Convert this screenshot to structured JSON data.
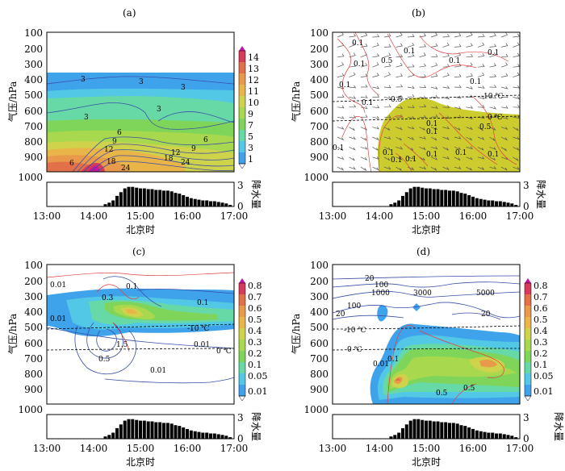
{
  "figure": {
    "pressure_ticks": [
      "100",
      "200",
      "300",
      "400",
      "500",
      "600",
      "700",
      "800",
      "900",
      "1000"
    ],
    "precip_ticks": [
      "3",
      "0"
    ],
    "time_ticks": [
      "13:00",
      "14:00",
      "15:00",
      "16:00",
      "17:00"
    ],
    "xlabel": "北京时",
    "ylabel": "气压/hPa",
    "precip_label": "降水量"
  },
  "chart_data": [
    {
      "panel": "(a)",
      "type": "heatmap",
      "xlabel": "北京时",
      "ylabel": "气压/hPa",
      "ylim": [
        1000,
        100
      ],
      "x_range": [
        "13:00",
        "17:00"
      ],
      "colorbar": {
        "ticks": [
          "1",
          "3",
          "5",
          "7",
          "9",
          "10",
          "11",
          "12",
          "13",
          "14"
        ],
        "colors": [
          "#ffffff",
          "#3fa3ec",
          "#52c8e6",
          "#66d9a6",
          "#7fd55a",
          "#a8d84e",
          "#cfd34c",
          "#e9b548",
          "#e89a4a",
          "#e27048",
          "#d63c5a",
          "#c2179e"
        ]
      },
      "contour_labels": [
        "3",
        "3",
        "3",
        "3",
        "3",
        "6",
        "6",
        "9",
        "9",
        "12",
        "12",
        "18",
        "18",
        "24",
        "24"
      ]
    },
    {
      "panel": "(b)",
      "type": "heatmap",
      "xlabel": "北京时",
      "ylabel": "气压/hPa",
      "ylim": [
        1000,
        100
      ],
      "x_range": [
        "13:00",
        "17:00"
      ],
      "contour_labels": [
        "0.1",
        "0.1",
        "0.1",
        "0.1",
        "0.1",
        "0.5",
        "0.5",
        "0.1",
        "0.1",
        "0.5",
        "0.1",
        "0.1",
        "0.1",
        "0.1",
        "0.1",
        "0.1",
        "0.1",
        "0.1",
        "0.1",
        "0.1"
      ],
      "isotherm_labels": [
        "-10 ℃",
        "0 ℃"
      ]
    },
    {
      "panel": "(c)",
      "type": "heatmap",
      "xlabel": "北京时",
      "ylabel": "气压/hPa",
      "ylim": [
        1000,
        100
      ],
      "x_range": [
        "13:00",
        "17:00"
      ],
      "colorbar": {
        "ticks": [
          "0.8",
          "0.7",
          "0.6",
          "0.5",
          "0.4",
          "0.3",
          "0.2",
          "0.1",
          "0.05",
          "0.01"
        ],
        "colors": [
          "#c2179e",
          "#d63c5a",
          "#e27048",
          "#e89a4a",
          "#e9b548",
          "#cfd34c",
          "#a8d84e",
          "#7fd55a",
          "#66d9a6",
          "#52c8e6",
          "#3fa3ec",
          "#ffffff"
        ]
      },
      "contour_labels": [
        "0.01",
        "0.1",
        "0.3",
        "0.1",
        "0.01",
        "1.5",
        "0.5",
        "0.01",
        "0.01"
      ],
      "isotherm_labels": [
        "-10 ℃",
        "0 ℃"
      ]
    },
    {
      "panel": "(d)",
      "type": "heatmap",
      "xlabel": "北京时",
      "ylabel": "气压/hPa",
      "ylim": [
        1000,
        100
      ],
      "x_range": [
        "13:00",
        "17:00"
      ],
      "colorbar": {
        "ticks": [
          "0.8",
          "0.7",
          "0.6",
          "0.5",
          "0.4",
          "0.3",
          "0.2",
          "0.1",
          "0.05",
          "0.01"
        ],
        "colors": [
          "#c2179e",
          "#d63c5a",
          "#e27048",
          "#e89a4a",
          "#e9b548",
          "#cfd34c",
          "#a8d84e",
          "#7fd55a",
          "#66d9a6",
          "#52c8e6",
          "#3fa3ec",
          "#ffffff"
        ]
      },
      "contour_labels": [
        "20",
        "100",
        "1000",
        "3000",
        "5000",
        "100",
        "20",
        "20",
        "0.1",
        "0.01",
        "0.5",
        "0.5"
      ],
      "isotherm_labels": [
        "-10 ℃",
        "0 ℃"
      ]
    },
    {
      "panel": "precipitation",
      "type": "bar",
      "ylim": [
        0,
        3
      ],
      "times": [
        "14:15",
        "14:20",
        "14:25",
        "14:30",
        "14:35",
        "14:40",
        "14:45",
        "14:50",
        "14:55",
        "15:00",
        "15:05",
        "15:10",
        "15:15",
        "15:20",
        "15:25",
        "15:30",
        "15:35",
        "15:40",
        "15:45",
        "15:50",
        "15:55",
        "16:00",
        "16:05",
        "16:10",
        "16:15",
        "16:20",
        "16:25",
        "16:30",
        "16:35",
        "16:40",
        "16:45",
        "16:50",
        "16:55"
      ],
      "values": [
        0.3,
        0.5,
        0.8,
        1.4,
        1.9,
        2.4,
        2.6,
        2.6,
        2.5,
        2.4,
        2.4,
        2.3,
        2.3,
        2.2,
        2.2,
        2.1,
        2.1,
        2.0,
        1.8,
        1.7,
        1.5,
        1.3,
        1.1,
        1.0,
        0.9,
        0.8,
        0.8,
        0.7,
        0.7,
        0.6,
        0.5,
        0.4,
        0.2
      ]
    }
  ]
}
